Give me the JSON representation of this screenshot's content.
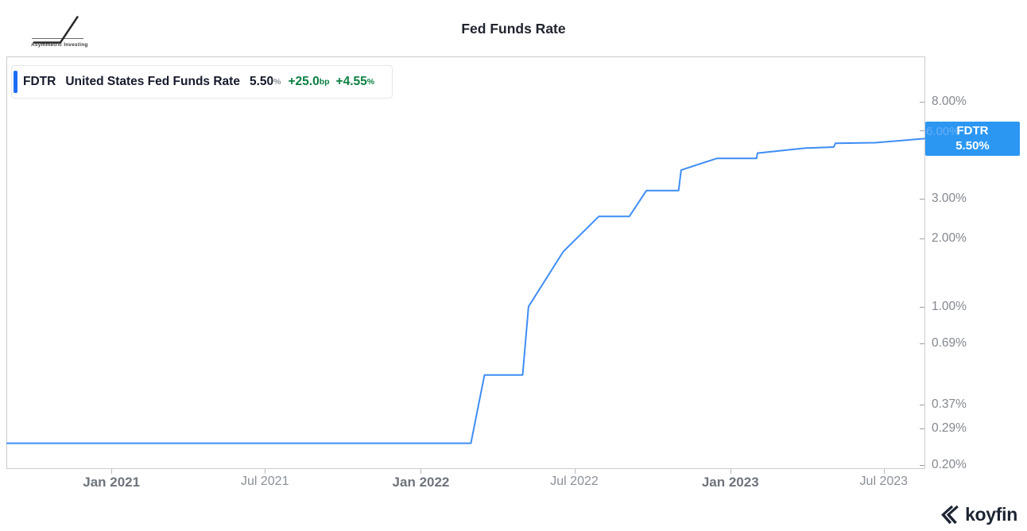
{
  "branding": {
    "logo_label": "Asymmetric Investing",
    "watermark_label": "koyfin"
  },
  "title": "Fed Funds Rate",
  "legend": {
    "ticker": "FDTR",
    "name": "United States Fed Funds Rate",
    "value": "5.50",
    "value_unit": "%",
    "change_bp": "+25.0",
    "change_bp_unit": "bp",
    "change_pct": "+4.55",
    "change_pct_unit": "%"
  },
  "price_label": {
    "ticker": "FDTR",
    "value": "5.50%",
    "hidden_axis_label": "6.00%"
  },
  "colors": {
    "line": "#3e8df5",
    "badge": "#2b97f3",
    "legend_bar": "#1b6ef3",
    "positive": "#0b8043"
  },
  "chart_data": {
    "type": "line",
    "title": "Fed Funds Rate",
    "grid": false,
    "line_color": "#3e8df5",
    "legend_position": "top-left",
    "y_axis": {
      "side": "right",
      "scale": "log",
      "unit": "%",
      "domain": [
        12.57,
        0.194
      ],
      "ticks": [
        {
          "value": 8,
          "label": "8.00%"
        },
        {
          "value": 6,
          "label": "6.00%"
        },
        {
          "value": 3,
          "label": "3.00%"
        },
        {
          "value": 2,
          "label": "2.00%"
        },
        {
          "value": 1,
          "label": "1.00%"
        },
        {
          "value": 0.69,
          "label": "0.69%"
        },
        {
          "value": 0.37,
          "label": "0.37%"
        },
        {
          "value": 0.29,
          "label": "0.29%"
        },
        {
          "value": 0.2,
          "label": "0.20%"
        }
      ]
    },
    "x_axis": {
      "domain": [
        "2020-08-31",
        "2023-08-18"
      ],
      "ticks": [
        {
          "date": "2021-01-01",
          "label": "Jan 2021",
          "major": true
        },
        {
          "date": "2021-07-01",
          "label": "Jul 2021",
          "major": false
        },
        {
          "date": "2022-01-01",
          "label": "Jan 2022",
          "major": true
        },
        {
          "date": "2022-07-01",
          "label": "Jul 2022",
          "major": false
        },
        {
          "date": "2023-01-01",
          "label": "Jan 2023",
          "major": true
        },
        {
          "date": "2023-07-01",
          "label": "Jul 2023",
          "major": false
        }
      ]
    },
    "series": [
      {
        "name": "United States Fed Funds Rate",
        "ticker": "FDTR",
        "unit": "%",
        "last_value": 5.5,
        "change_bp": "+25.0bp",
        "change_pct": "+4.55%",
        "points": [
          [
            "2020-08-31",
            0.25
          ],
          [
            "2022-03-01",
            0.25
          ],
          [
            "2022-03-17",
            0.5
          ],
          [
            "2022-05-01",
            0.5
          ],
          [
            "2022-05-08",
            1.0
          ],
          [
            "2022-06-18",
            1.75
          ],
          [
            "2022-07-30",
            2.5
          ],
          [
            "2022-09-04",
            2.5
          ],
          [
            "2022-09-24",
            3.25
          ],
          [
            "2022-11-01",
            3.25
          ],
          [
            "2022-11-04",
            4.0
          ],
          [
            "2022-12-16",
            4.5
          ],
          [
            "2023-02-01",
            4.5
          ],
          [
            "2023-02-02",
            4.75
          ],
          [
            "2023-03-31",
            5.0
          ],
          [
            "2023-05-03",
            5.05
          ],
          [
            "2023-05-05",
            5.25
          ],
          [
            "2023-06-21",
            5.28
          ],
          [
            "2023-08-18",
            5.5
          ]
        ]
      }
    ]
  }
}
